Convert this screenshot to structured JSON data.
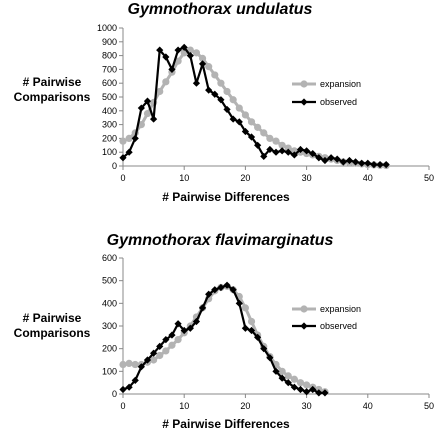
{
  "chart_data": [
    {
      "type": "line",
      "title": "Gymnothorax undulatus",
      "xlabel": "# Pairwise Differences",
      "ylabel": [
        "# Pairwise",
        "Comparisons"
      ],
      "xlim": [
        0,
        50
      ],
      "ylim": [
        0,
        1000
      ],
      "xticks": [
        0,
        10,
        20,
        30,
        40,
        50
      ],
      "yticks": [
        0,
        100,
        200,
        300,
        400,
        500,
        600,
        700,
        800,
        900,
        1000
      ],
      "grid": false,
      "legend_position": "right",
      "series": [
        {
          "name": "expansion",
          "color": "#b3b3b3",
          "marker": "circle",
          "x": [
            0,
            1,
            2,
            3,
            4,
            5,
            6,
            7,
            8,
            9,
            10,
            11,
            12,
            13,
            14,
            15,
            16,
            17,
            18,
            19,
            20,
            21,
            22,
            23,
            24,
            25,
            26,
            27,
            28,
            29,
            30,
            31,
            32,
            33,
            34,
            35,
            36,
            37,
            38,
            39,
            40,
            41,
            42,
            43
          ],
          "y": [
            180,
            200,
            240,
            300,
            380,
            460,
            540,
            610,
            680,
            760,
            820,
            840,
            820,
            780,
            720,
            660,
            600,
            540,
            480,
            420,
            370,
            320,
            280,
            240,
            200,
            180,
            150,
            130,
            110,
            100,
            90,
            80,
            70,
            60,
            50,
            40,
            30,
            25,
            20,
            15,
            10,
            8,
            5,
            3
          ]
        },
        {
          "name": "observed",
          "color": "#000000",
          "marker": "diamond",
          "x": [
            0,
            1,
            2,
            3,
            4,
            5,
            6,
            7,
            8,
            9,
            10,
            11,
            12,
            13,
            14,
            15,
            16,
            17,
            18,
            19,
            20,
            21,
            22,
            23,
            24,
            25,
            26,
            27,
            28,
            29,
            30,
            31,
            32,
            33,
            34,
            35,
            36,
            37,
            38,
            39,
            40,
            41,
            42,
            43
          ],
          "y": [
            60,
            100,
            200,
            420,
            470,
            340,
            840,
            790,
            700,
            840,
            860,
            800,
            600,
            740,
            550,
            520,
            480,
            410,
            340,
            320,
            250,
            210,
            150,
            70,
            120,
            100,
            110,
            100,
            80,
            120,
            110,
            90,
            60,
            40,
            60,
            50,
            30,
            40,
            30,
            20,
            20,
            10,
            10,
            10
          ]
        }
      ]
    },
    {
      "type": "line",
      "title": "Gymnothorax flavimarginatus",
      "xlabel": "# Pairwise Differences",
      "ylabel": [
        "# Pairwise",
        "Comparisons"
      ],
      "xlim": [
        0,
        50
      ],
      "ylim": [
        0,
        600
      ],
      "xticks": [
        0,
        10,
        20,
        30,
        40,
        50
      ],
      "yticks": [
        0,
        100,
        200,
        300,
        400,
        500,
        600
      ],
      "grid": false,
      "legend_position": "right",
      "series": [
        {
          "name": "expansion",
          "color": "#b3b3b3",
          "marker": "circle",
          "x": [
            0,
            1,
            2,
            3,
            4,
            5,
            6,
            7,
            8,
            9,
            10,
            11,
            12,
            13,
            14,
            15,
            16,
            17,
            18,
            19,
            20,
            21,
            22,
            23,
            24,
            25,
            26,
            27,
            28,
            29,
            30,
            31,
            32,
            33
          ],
          "y": [
            130,
            135,
            130,
            130,
            140,
            150,
            170,
            190,
            215,
            240,
            270,
            300,
            340,
            380,
            420,
            455,
            470,
            475,
            460,
            430,
            380,
            320,
            260,
            210,
            165,
            130,
            100,
            80,
            65,
            50,
            40,
            30,
            20,
            10
          ],
          "_note_removed": null
        },
        {
          "name": "observed",
          "color": "#000000",
          "marker": "diamond",
          "x": [
            0,
            1,
            2,
            3,
            4,
            5,
            6,
            7,
            8,
            9,
            10,
            11,
            12,
            13,
            14,
            15,
            16,
            17,
            18,
            19,
            20,
            21,
            22,
            23,
            24,
            25,
            26,
            27,
            28,
            29,
            30,
            31,
            32,
            33
          ],
          "y": [
            20,
            30,
            60,
            120,
            150,
            180,
            210,
            240,
            260,
            310,
            280,
            290,
            320,
            380,
            440,
            460,
            470,
            480,
            460,
            400,
            290,
            280,
            250,
            200,
            160,
            100,
            70,
            50,
            30,
            20,
            10,
            20,
            5,
            5
          ]
        }
      ]
    }
  ]
}
